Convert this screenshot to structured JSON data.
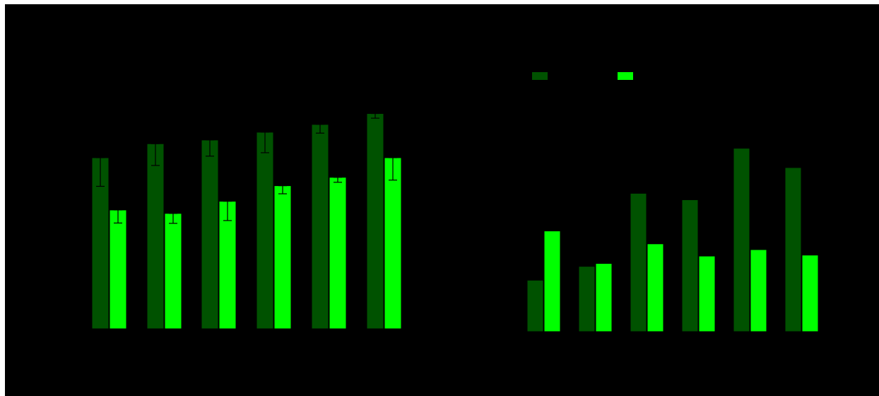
{
  "colors": {
    "background": "#000000",
    "frame": "#ffffff",
    "series_dark": "#005200",
    "series_bright": "#00ff00",
    "error_bar": "#000000"
  },
  "chart_data": [
    {
      "type": "bar",
      "categories": [
        "",
        "",
        "",
        "",
        "",
        ""
      ],
      "series": [
        {
          "values": [
            5.5,
            5.95,
            6.07,
            6.32,
            6.57,
            6.92
          ],
          "err_low": [
            0.92,
            0.7,
            0.52,
            0.66,
            0.28,
            0.15
          ],
          "err_high": [
            0.0,
            0.0,
            0.0,
            0.0,
            0.0,
            0.0
          ]
        },
        {
          "values": [
            3.82,
            3.71,
            4.1,
            4.6,
            4.87,
            5.5
          ],
          "err_low": [
            0.42,
            0.32,
            0.62,
            0.26,
            0.16,
            0.72
          ],
          "err_high": [
            0.0,
            0.0,
            0.0,
            0.0,
            0.0,
            0.0
          ]
        }
      ],
      "ylim": [
        0,
        8
      ],
      "grid": false,
      "legend": "none"
    },
    {
      "type": "bar",
      "categories": [
        "",
        "",
        "",
        "",
        "",
        ""
      ],
      "series": [
        {
          "values": [
            1.6,
            2.03,
            4.3,
            4.1,
            5.7,
            5.1
          ]
        },
        {
          "values": [
            3.13,
            2.12,
            2.73,
            2.35,
            2.55,
            2.38
          ]
        }
      ],
      "ylim": [
        0,
        8
      ],
      "grid": false,
      "legend": "top-center"
    }
  ]
}
